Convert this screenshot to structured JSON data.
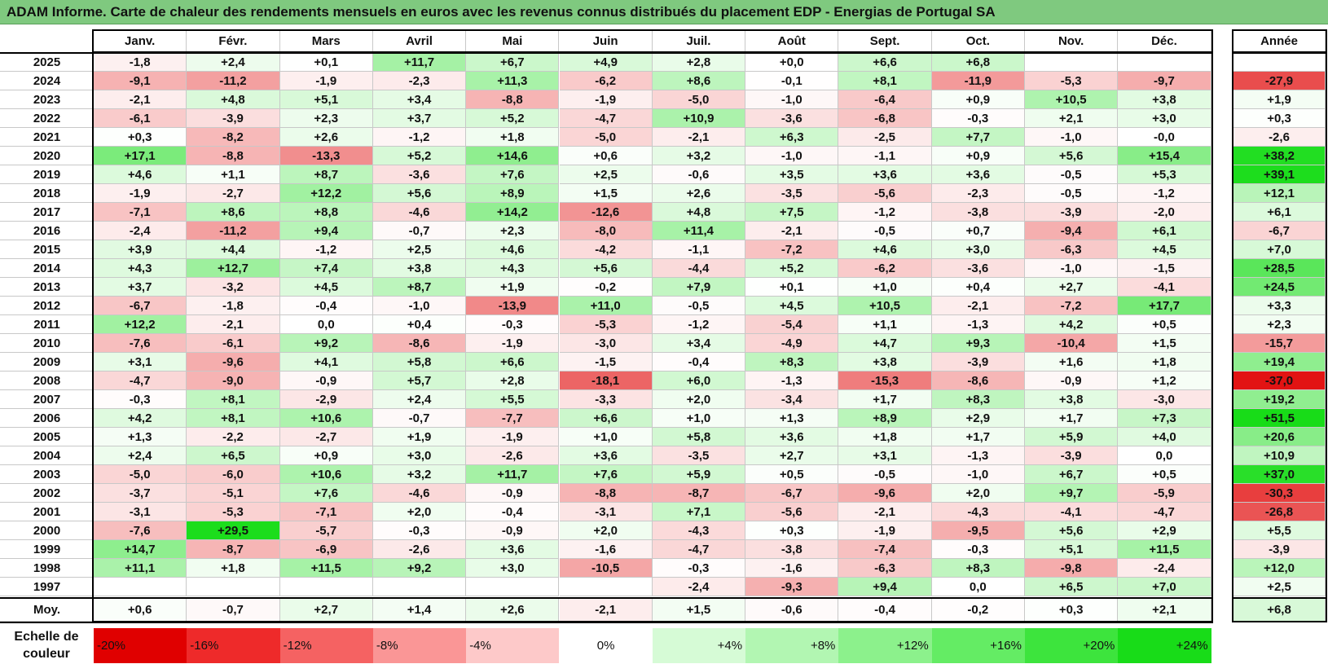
{
  "title": "ADAM Informe. Carte de chaleur des rendements mensuels en euros avec les revenus connus distribués du placement EDP - Energias de Portugal SA",
  "chart_data": {
    "type": "heatmap",
    "columns": [
      "Janv.",
      "Févr.",
      "Mars",
      "Avril",
      "Mai",
      "Juin",
      "Juil.",
      "Août",
      "Sept.",
      "Oct.",
      "Nov.",
      "Déc."
    ],
    "year_column_label": "Année",
    "average_row_label": "Moy.",
    "rows": [
      {
        "year": "2025",
        "values": [
          "-1,8",
          "+2,4",
          "+0,1",
          "+11,7",
          "+6,7",
          "+4,9",
          "+2,8",
          "+0,0",
          "+6,6",
          "+6,8",
          "",
          ""
        ],
        "annual": ""
      },
      {
        "year": "2024",
        "values": [
          "-9,1",
          "-11,2",
          "-1,9",
          "-2,3",
          "+11,3",
          "-6,2",
          "+8,6",
          "-0,1",
          "+8,1",
          "-11,9",
          "-5,3",
          "-9,7"
        ],
        "annual": "-27,9"
      },
      {
        "year": "2023",
        "values": [
          "-2,1",
          "+4,8",
          "+5,1",
          "+3,4",
          "-8,8",
          "-1,9",
          "-5,0",
          "-1,0",
          "-6,4",
          "+0,9",
          "+10,5",
          "+3,8"
        ],
        "annual": "+1,9"
      },
      {
        "year": "2022",
        "values": [
          "-6,1",
          "-3,9",
          "+2,3",
          "+3,7",
          "+5,2",
          "-4,7",
          "+10,9",
          "-3,6",
          "-6,8",
          "-0,3",
          "+2,1",
          "+3,0"
        ],
        "annual": "+0,3"
      },
      {
        "year": "2021",
        "values": [
          "+0,3",
          "-8,2",
          "+2,6",
          "-1,2",
          "+1,8",
          "-5,0",
          "-2,1",
          "+6,3",
          "-2,5",
          "+7,7",
          "-1,0",
          "-0,0"
        ],
        "annual": "-2,6"
      },
      {
        "year": "2020",
        "values": [
          "+17,1",
          "-8,8",
          "-13,3",
          "+5,2",
          "+14,6",
          "+0,6",
          "+3,2",
          "-1,0",
          "-1,1",
          "+0,9",
          "+5,6",
          "+15,4"
        ],
        "annual": "+38,2"
      },
      {
        "year": "2019",
        "values": [
          "+4,6",
          "+1,1",
          "+8,7",
          "-3,6",
          "+7,6",
          "+2,5",
          "-0,6",
          "+3,5",
          "+3,6",
          "+3,6",
          "-0,5",
          "+5,3"
        ],
        "annual": "+39,1"
      },
      {
        "year": "2018",
        "values": [
          "-1,9",
          "-2,7",
          "+12,2",
          "+5,6",
          "+8,9",
          "+1,5",
          "+2,6",
          "-3,5",
          "-5,6",
          "-2,3",
          "-0,5",
          "-1,2"
        ],
        "annual": "+12,1"
      },
      {
        "year": "2017",
        "values": [
          "-7,1",
          "+8,6",
          "+8,8",
          "-4,6",
          "+14,2",
          "-12,6",
          "+4,8",
          "+7,5",
          "-1,2",
          "-3,8",
          "-3,9",
          "-2,0"
        ],
        "annual": "+6,1"
      },
      {
        "year": "2016",
        "values": [
          "-2,4",
          "-11,2",
          "+9,4",
          "-0,7",
          "+2,3",
          "-8,0",
          "+11,4",
          "-2,1",
          "-0,5",
          "+0,7",
          "-9,4",
          "+6,1"
        ],
        "annual": "-6,7"
      },
      {
        "year": "2015",
        "values": [
          "+3,9",
          "+4,4",
          "-1,2",
          "+2,5",
          "+4,6",
          "-4,2",
          "-1,1",
          "-7,2",
          "+4,6",
          "+3,0",
          "-6,3",
          "+4,5"
        ],
        "annual": "+7,0"
      },
      {
        "year": "2014",
        "values": [
          "+4,3",
          "+12,7",
          "+7,4",
          "+3,8",
          "+4,3",
          "+5,6",
          "-4,4",
          "+5,2",
          "-6,2",
          "-3,6",
          "-1,0",
          "-1,5"
        ],
        "annual": "+28,5"
      },
      {
        "year": "2013",
        "values": [
          "+3,7",
          "-3,2",
          "+4,5",
          "+8,7",
          "+1,9",
          "-0,2",
          "+7,9",
          "+0,1",
          "+1,0",
          "+0,4",
          "+2,7",
          "-4,1"
        ],
        "annual": "+24,5"
      },
      {
        "year": "2012",
        "values": [
          "-6,7",
          "-1,8",
          "-0,4",
          "-1,0",
          "-13,9",
          "+11,0",
          "-0,5",
          "+4,5",
          "+10,5",
          "-2,1",
          "-7,2",
          "+17,7"
        ],
        "annual": "+3,3"
      },
      {
        "year": "2011",
        "values": [
          "+12,2",
          "-2,1",
          "0,0",
          "+0,4",
          "-0,3",
          "-5,3",
          "-1,2",
          "-5,4",
          "+1,1",
          "-1,3",
          "+4,2",
          "+0,5"
        ],
        "annual": "+2,3"
      },
      {
        "year": "2010",
        "values": [
          "-7,6",
          "-6,1",
          "+9,2",
          "-8,6",
          "-1,9",
          "-3,0",
          "+3,4",
          "-4,9",
          "+4,7",
          "+9,3",
          "-10,4",
          "+1,5"
        ],
        "annual": "-15,7"
      },
      {
        "year": "2009",
        "values": [
          "+3,1",
          "-9,6",
          "+4,1",
          "+5,8",
          "+6,6",
          "-1,5",
          "-0,4",
          "+8,3",
          "+3,8",
          "-3,9",
          "+1,6",
          "+1,8"
        ],
        "annual": "+19,4"
      },
      {
        "year": "2008",
        "values": [
          "-4,7",
          "-9,0",
          "-0,9",
          "+5,7",
          "+2,8",
          "-18,1",
          "+6,0",
          "-1,3",
          "-15,3",
          "-8,6",
          "-0,9",
          "+1,2"
        ],
        "annual": "-37,0"
      },
      {
        "year": "2007",
        "values": [
          "-0,3",
          "+8,1",
          "-2,9",
          "+2,4",
          "+5,5",
          "-3,3",
          "+2,0",
          "-3,4",
          "+1,7",
          "+8,3",
          "+3,8",
          "-3,0"
        ],
        "annual": "+19,2"
      },
      {
        "year": "2006",
        "values": [
          "+4,2",
          "+8,1",
          "+10,6",
          "-0,7",
          "-7,7",
          "+6,6",
          "+1,0",
          "+1,3",
          "+8,9",
          "+2,9",
          "+1,7",
          "+7,3"
        ],
        "annual": "+51,5"
      },
      {
        "year": "2005",
        "values": [
          "+1,3",
          "-2,2",
          "-2,7",
          "+1,9",
          "-1,9",
          "+1,0",
          "+5,8",
          "+3,6",
          "+1,8",
          "+1,7",
          "+5,9",
          "+4,0"
        ],
        "annual": "+20,6"
      },
      {
        "year": "2004",
        "values": [
          "+2,4",
          "+6,5",
          "+0,9",
          "+3,0",
          "-2,6",
          "+3,6",
          "-3,5",
          "+2,7",
          "+3,1",
          "-1,3",
          "-3,9",
          "0,0"
        ],
        "annual": "+10,9"
      },
      {
        "year": "2003",
        "values": [
          "-5,0",
          "-6,0",
          "+10,6",
          "+3,2",
          "+11,7",
          "+7,6",
          "+5,9",
          "+0,5",
          "-0,5",
          "-1,0",
          "+6,7",
          "+0,5"
        ],
        "annual": "+37,0"
      },
      {
        "year": "2002",
        "values": [
          "-3,7",
          "-5,1",
          "+7,6",
          "-4,6",
          "-0,9",
          "-8,8",
          "-8,7",
          "-6,7",
          "-9,6",
          "+2,0",
          "+9,7",
          "-5,9"
        ],
        "annual": "-30,3"
      },
      {
        "year": "2001",
        "values": [
          "-3,1",
          "-5,3",
          "-7,1",
          "+2,0",
          "-0,4",
          "-3,1",
          "+7,1",
          "-5,6",
          "-2,1",
          "-4,3",
          "-4,1",
          "-4,7"
        ],
        "annual": "-26,8"
      },
      {
        "year": "2000",
        "values": [
          "-7,6",
          "+29,5",
          "-5,7",
          "-0,3",
          "-0,9",
          "+2,0",
          "-4,3",
          "+0,3",
          "-1,9",
          "-9,5",
          "+5,6",
          "+2,9"
        ],
        "annual": "+5,5"
      },
      {
        "year": "1999",
        "values": [
          "+14,7",
          "-8,7",
          "-6,9",
          "-2,6",
          "+3,6",
          "-1,6",
          "-4,7",
          "-3,8",
          "-7,4",
          "-0,3",
          "+5,1",
          "+11,5"
        ],
        "annual": "-3,9"
      },
      {
        "year": "1998",
        "values": [
          "+11,1",
          "+1,8",
          "+11,5",
          "+9,2",
          "+3,0",
          "-10,5",
          "-0,3",
          "-1,6",
          "-6,3",
          "+8,3",
          "-9,8",
          "-2,4"
        ],
        "annual": "+12,0"
      },
      {
        "year": "1997",
        "values": [
          "",
          "",
          "",
          "",
          "",
          "",
          "-2,4",
          "-9,3",
          "+9,4",
          "0,0",
          "+6,5",
          "+7,0"
        ],
        "annual": "+2,5"
      }
    ],
    "averages": {
      "values": [
        "+0,6",
        "-0,7",
        "+2,7",
        "+1,4",
        "+2,6",
        "-2,1",
        "+1,5",
        "-0,6",
        "-0,4",
        "-0,2",
        "+0,3",
        "+2,1"
      ],
      "annual": "+6,8"
    },
    "color_scale": {
      "label": "Echelle de couleur",
      "stops": [
        {
          "label": "-20%",
          "color": "#e00000"
        },
        {
          "label": "-16%",
          "color": "#ee2a2a"
        },
        {
          "label": "-12%",
          "color": "#f56262"
        },
        {
          "label": "-8%",
          "color": "#fa9696"
        },
        {
          "label": "-4%",
          "color": "#fdc9c9"
        },
        {
          "label": "0%",
          "color": "#ffffff"
        },
        {
          "label": "+4%",
          "color": "#d6fbd6"
        },
        {
          "label": "+8%",
          "color": "#b2f6b2"
        },
        {
          "label": "+12%",
          "color": "#8cf18c"
        },
        {
          "label": "+16%",
          "color": "#64ec64"
        },
        {
          "label": "+20%",
          "color": "#3de43d"
        },
        {
          "label": "+24%",
          "color": "#18dc18"
        }
      ]
    }
  }
}
